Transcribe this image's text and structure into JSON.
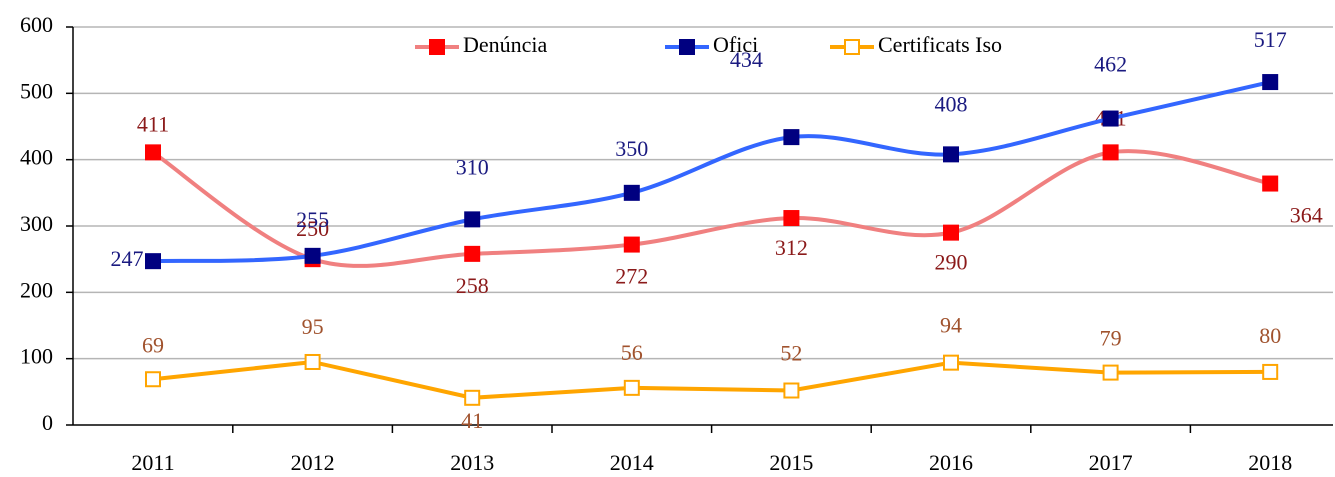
{
  "chart_data": {
    "type": "line",
    "categories": [
      "2011",
      "2012",
      "2013",
      "2014",
      "2015",
      "2016",
      "2017",
      "2018"
    ],
    "series": [
      {
        "name": "Denúncia",
        "color": "#f08080",
        "marker_color": "#ff0000",
        "label_color": "#8b1a1a",
        "smooth": true,
        "marker": "filled",
        "values": [
          411,
          250,
          258,
          272,
          312,
          290,
          411,
          364
        ]
      },
      {
        "name": "Ofici",
        "color": "#3366ff",
        "marker_color": "#000080",
        "label_color": "#1a1a80",
        "smooth": true,
        "marker": "filled",
        "values": [
          247,
          255,
          310,
          350,
          434,
          408,
          462,
          517
        ]
      },
      {
        "name": "Certificats Iso",
        "color": "#ffa500",
        "marker_color": "#ffa500",
        "label_color": "#a0522d",
        "smooth": false,
        "marker": "hollow",
        "values": [
          69,
          95,
          41,
          56,
          52,
          94,
          79,
          80
        ]
      }
    ],
    "ylim": [
      0,
      600
    ],
    "yticks": [
      0,
      100,
      200,
      300,
      400,
      500,
      600
    ],
    "grid": true,
    "legend": "top"
  }
}
